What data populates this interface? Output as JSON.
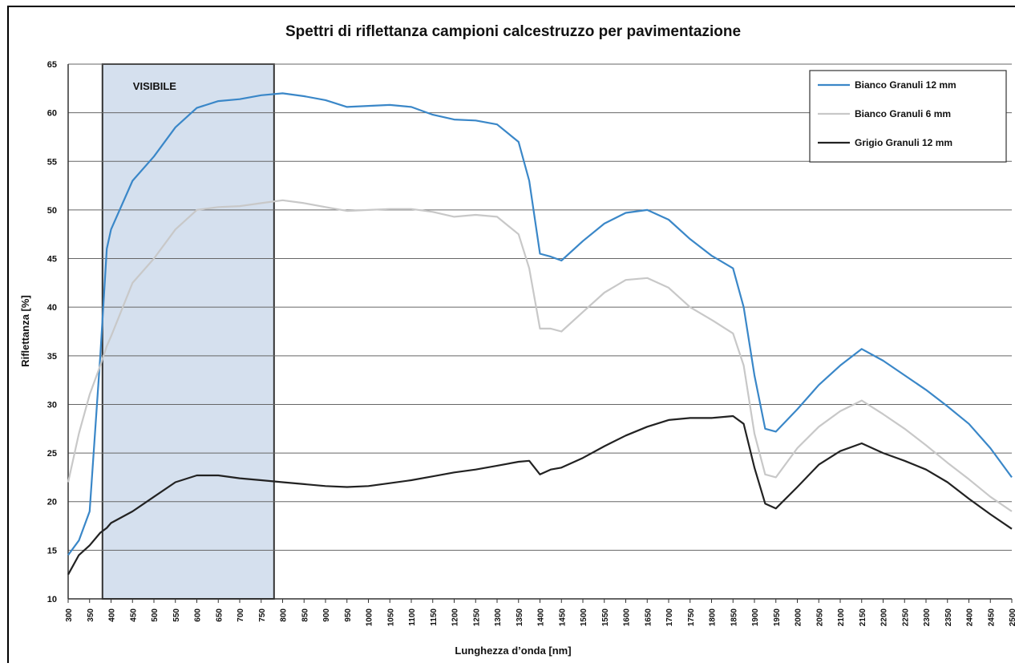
{
  "chart_data": {
    "type": "line",
    "title": "Spettri di riflettanza campioni calcestruzzo per pavimentazione",
    "x_label": "Lunghezza d’onda [nm]",
    "y_label": "Riflettanza [%]",
    "x": [
      300,
      325,
      350,
      375,
      390,
      400,
      450,
      500,
      550,
      600,
      650,
      700,
      750,
      800,
      850,
      900,
      950,
      1000,
      1050,
      1100,
      1150,
      1200,
      1250,
      1300,
      1350,
      1375,
      1400,
      1425,
      1450,
      1500,
      1550,
      1600,
      1650,
      1700,
      1750,
      1800,
      1850,
      1875,
      1900,
      1925,
      1950,
      2000,
      2050,
      2100,
      2150,
      2200,
      2250,
      2300,
      2350,
      2400,
      2450,
      2500
    ],
    "series": [
      {
        "name": "Bianco Granuli 12 mm",
        "color": "#3a87c8",
        "values": [
          14.5,
          16,
          19,
          35,
          46,
          48,
          53,
          55.5,
          58.5,
          60.5,
          61.2,
          61.4,
          61.8,
          62,
          61.7,
          61.3,
          60.6,
          60.7,
          60.8,
          60.6,
          59.8,
          59.3,
          59.2,
          58.8,
          57,
          53,
          45.5,
          45.2,
          44.8,
          46.8,
          48.6,
          49.7,
          50,
          49,
          47,
          45.3,
          44,
          40,
          33,
          27.5,
          27.2,
          29.5,
          32,
          34,
          35.7,
          34.5,
          33,
          31.5,
          29.8,
          28,
          25.5,
          22.5
        ]
      },
      {
        "name": "Bianco Granuli 6 mm",
        "color": "#c8c8c8",
        "values": [
          22,
          27,
          31,
          34,
          36,
          37,
          42.5,
          45,
          48,
          50,
          50.3,
          50.4,
          50.7,
          51,
          50.7,
          50.3,
          49.9,
          50,
          50.1,
          50.1,
          49.8,
          49.3,
          49.5,
          49.3,
          47.5,
          44,
          37.8,
          37.8,
          37.5,
          39.5,
          41.5,
          42.8,
          43,
          42,
          40,
          38.7,
          37.3,
          34,
          27,
          22.8,
          22.5,
          25.5,
          27.7,
          29.3,
          30.4,
          29,
          27.5,
          25.8,
          24,
          22.3,
          20.5,
          19
        ]
      },
      {
        "name": "Grigio Granuli 12 mm",
        "color": "#222222",
        "values": [
          12.5,
          14.5,
          15.5,
          16.8,
          17.3,
          17.8,
          19,
          20.5,
          22,
          22.7,
          22.7,
          22.4,
          22.2,
          22,
          21.8,
          21.6,
          21.5,
          21.6,
          21.9,
          22.2,
          22.6,
          23,
          23.3,
          23.7,
          24.1,
          24.2,
          22.8,
          23.3,
          23.5,
          24.5,
          25.7,
          26.8,
          27.7,
          28.4,
          28.6,
          28.6,
          28.8,
          28,
          23.5,
          19.8,
          19.3,
          21.5,
          23.8,
          25.2,
          26,
          25,
          24.2,
          23.3,
          22,
          20.3,
          18.7,
          17.2
        ]
      }
    ],
    "band": {
      "label": "VISIBILE",
      "x": [
        380,
        780
      ],
      "color": "#d5e0ee"
    },
    "xlim": [
      300,
      2500
    ],
    "xticks": [
      300,
      350,
      400,
      450,
      500,
      550,
      600,
      650,
      700,
      750,
      800,
      850,
      900,
      950,
      1000,
      1050,
      1100,
      1150,
      1200,
      1250,
      1300,
      1350,
      1400,
      1450,
      1500,
      1550,
      1600,
      1650,
      1700,
      1750,
      1800,
      1850,
      1900,
      1950,
      2000,
      2050,
      2100,
      2150,
      2200,
      2250,
      2300,
      2350,
      2400,
      2450,
      2500
    ],
    "ylim": [
      10,
      65
    ],
    "yticks": [
      10,
      15,
      20,
      25,
      30,
      35,
      40,
      45,
      50,
      55,
      60,
      65
    ],
    "grid": true,
    "legend": "top-right"
  }
}
